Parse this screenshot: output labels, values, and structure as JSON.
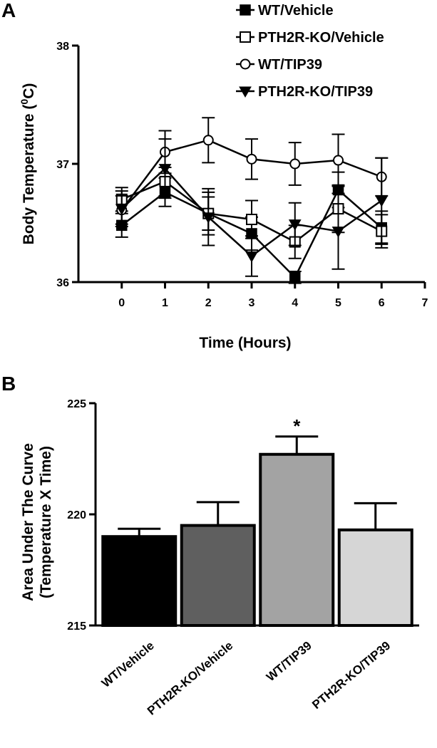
{
  "chart_data": [
    {
      "panel": "A",
      "type": "line",
      "xlabel": "Time (Hours)",
      "ylabel_main": "Body Temperature (",
      "ylabel_sup": "0",
      "ylabel_end": "C)",
      "xlim": [
        -1,
        7
      ],
      "ylim": [
        36,
        38
      ],
      "xticks": [
        0,
        1,
        2,
        3,
        4,
        5,
        6,
        7
      ],
      "yticks": [
        36,
        37,
        38
      ],
      "x": [
        0,
        1,
        2,
        3,
        4,
        5,
        6
      ],
      "legend_position": "top-right",
      "series": [
        {
          "name": "WT/Vehicle",
          "marker": "square-filled",
          "values": [
            36.48,
            36.76,
            36.58,
            36.41,
            36.04,
            36.78,
            36.46
          ],
          "errors": [
            0.1,
            0.12,
            0.14,
            0.14,
            0.05,
            0.15,
            0.14
          ]
        },
        {
          "name": "PTH2R-KO/Vehicle",
          "marker": "square-open",
          "values": [
            36.7,
            36.85,
            36.58,
            36.53,
            36.34,
            36.62,
            36.43
          ],
          "errors": [
            0.1,
            0.12,
            0.18,
            0.16,
            0.14,
            0.2,
            0.14
          ]
        },
        {
          "name": "WT/TIP39",
          "marker": "circle-open",
          "values": [
            36.61,
            37.1,
            37.2,
            37.04,
            37.0,
            37.03,
            36.89
          ],
          "errors": [
            0.12,
            0.18,
            0.19,
            0.17,
            0.18,
            0.22,
            0.16
          ]
        },
        {
          "name": "PTH2R-KO/TIP39",
          "marker": "triangle-down-filled",
          "values": [
            36.62,
            36.96,
            36.55,
            36.22,
            36.49,
            36.43,
            36.69
          ],
          "errors": [
            0.15,
            0.25,
            0.24,
            0.17,
            0.18,
            0.32,
            0.36
          ]
        }
      ]
    },
    {
      "panel": "B",
      "type": "bar",
      "ylabel_line1": "Area Under The Curve",
      "ylabel_line2": "(Temperature X Time)",
      "ylim": [
        215,
        225
      ],
      "yticks": [
        215,
        220,
        225
      ],
      "categories": [
        "WT/Vehicle",
        "PTH2R-KO/Vehicle",
        "WT/TIP39",
        "PTH2R-KO/TIP39"
      ],
      "values": [
        219.0,
        219.5,
        222.7,
        219.3
      ],
      "errors": [
        0.35,
        1.05,
        0.8,
        1.2
      ],
      "colors": [
        "#000000",
        "#5f5f5f",
        "#a3a3a3",
        "#d6d6d6"
      ],
      "annotations": [
        {
          "category": "WT/TIP39",
          "text": "*"
        }
      ]
    }
  ]
}
